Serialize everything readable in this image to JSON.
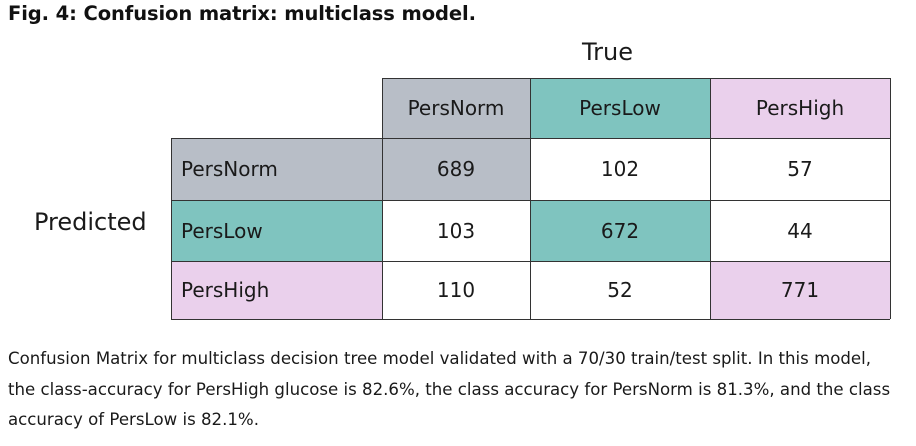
{
  "figure": {
    "title": "Fig. 4: Confusion matrix: multiclass model.",
    "caption_lines": [
      "Confusion Matrix for multiclass decision tree model validated with a 70/30 train/test split. In this model,",
      "the class-accuracy for PersHigh glucose is 82.6%, the class accuracy for PersNorm is 81.3%, and the class",
      "accuracy of PersLow is 82.1%."
    ]
  },
  "chart_data": {
    "type": "heatmap",
    "title": "Fig. 4: Confusion matrix: multiclass model.",
    "xlabel": "True",
    "ylabel": "Predicted",
    "columns": [
      "PersNorm",
      "PersLow",
      "PersHigh"
    ],
    "rows": [
      "PersNorm",
      "PersLow",
      "PersHigh"
    ],
    "values": [
      [
        689,
        102,
        57
      ],
      [
        103,
        672,
        44
      ],
      [
        110,
        52,
        771
      ]
    ],
    "class_colors": {
      "PersNorm": "#b8bec7",
      "PersLow": "#7fc4bf",
      "PersHigh": "#ead0ec"
    }
  }
}
